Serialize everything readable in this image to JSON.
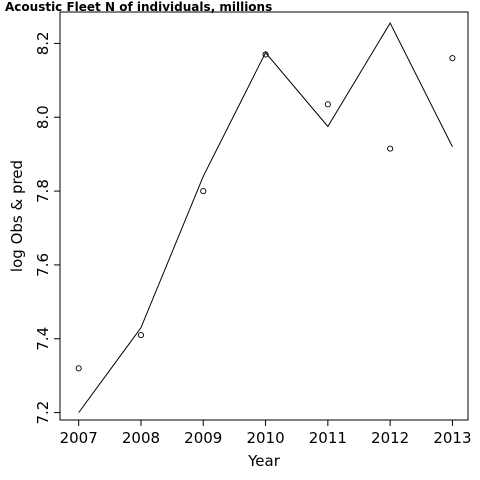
{
  "chart_data": {
    "type": "line",
    "title": "Acoustic Fleet   N of individuals, millions",
    "xlabel": "Year",
    "ylabel": "log Obs & pred",
    "x_ticks": [
      "2007",
      "2008",
      "2009",
      "2010",
      "2011",
      "2012",
      "2013"
    ],
    "y_ticks": [
      "7.2",
      "7.4",
      "7.6",
      "7.8",
      "8.0",
      "8.2"
    ],
    "xlim": [
      2006.7,
      2013.25
    ],
    "ylim": [
      7.18,
      8.285
    ],
    "grid": false,
    "series": [
      {
        "style": "points",
        "x": [
          2007,
          2008,
          2009,
          2010,
          2011,
          2012,
          2013
        ],
        "y": [
          7.32,
          7.41,
          7.8,
          8.17,
          8.035,
          7.915,
          8.16
        ]
      },
      {
        "style": "line",
        "x": [
          2007,
          2008,
          2009,
          2010,
          2011,
          2012,
          2013
        ],
        "y": [
          7.2,
          7.43,
          7.84,
          8.175,
          7.975,
          8.255,
          7.92
        ]
      }
    ]
  }
}
